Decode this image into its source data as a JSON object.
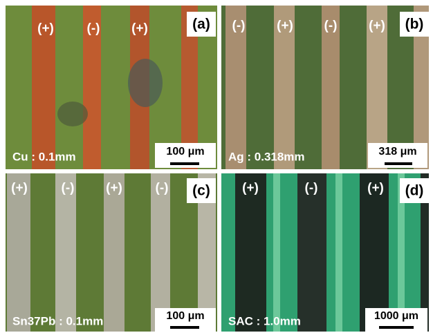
{
  "panels": [
    {
      "label": "(a)",
      "polarities": [
        "(+)",
        "(-)",
        "(+)"
      ],
      "material": "Cu : 0.1mm",
      "scale": "100 μm"
    },
    {
      "label": "(b)",
      "polarities": [
        "(-)",
        "(+)",
        "(-)",
        "(+)"
      ],
      "material": "Ag : 0.318mm",
      "scale": "318 μm"
    },
    {
      "label": "(c)",
      "polarities": [
        "(+)",
        "(-)",
        "(+)",
        "(-)"
      ],
      "material": "Sn37Pb : 0.1mm",
      "scale": "100 μm"
    },
    {
      "label": "(d)",
      "polarities": [
        "(+)",
        "(-)",
        "(+)"
      ],
      "material": "SAC : 1.0mm",
      "scale": "1000 μm"
    }
  ]
}
